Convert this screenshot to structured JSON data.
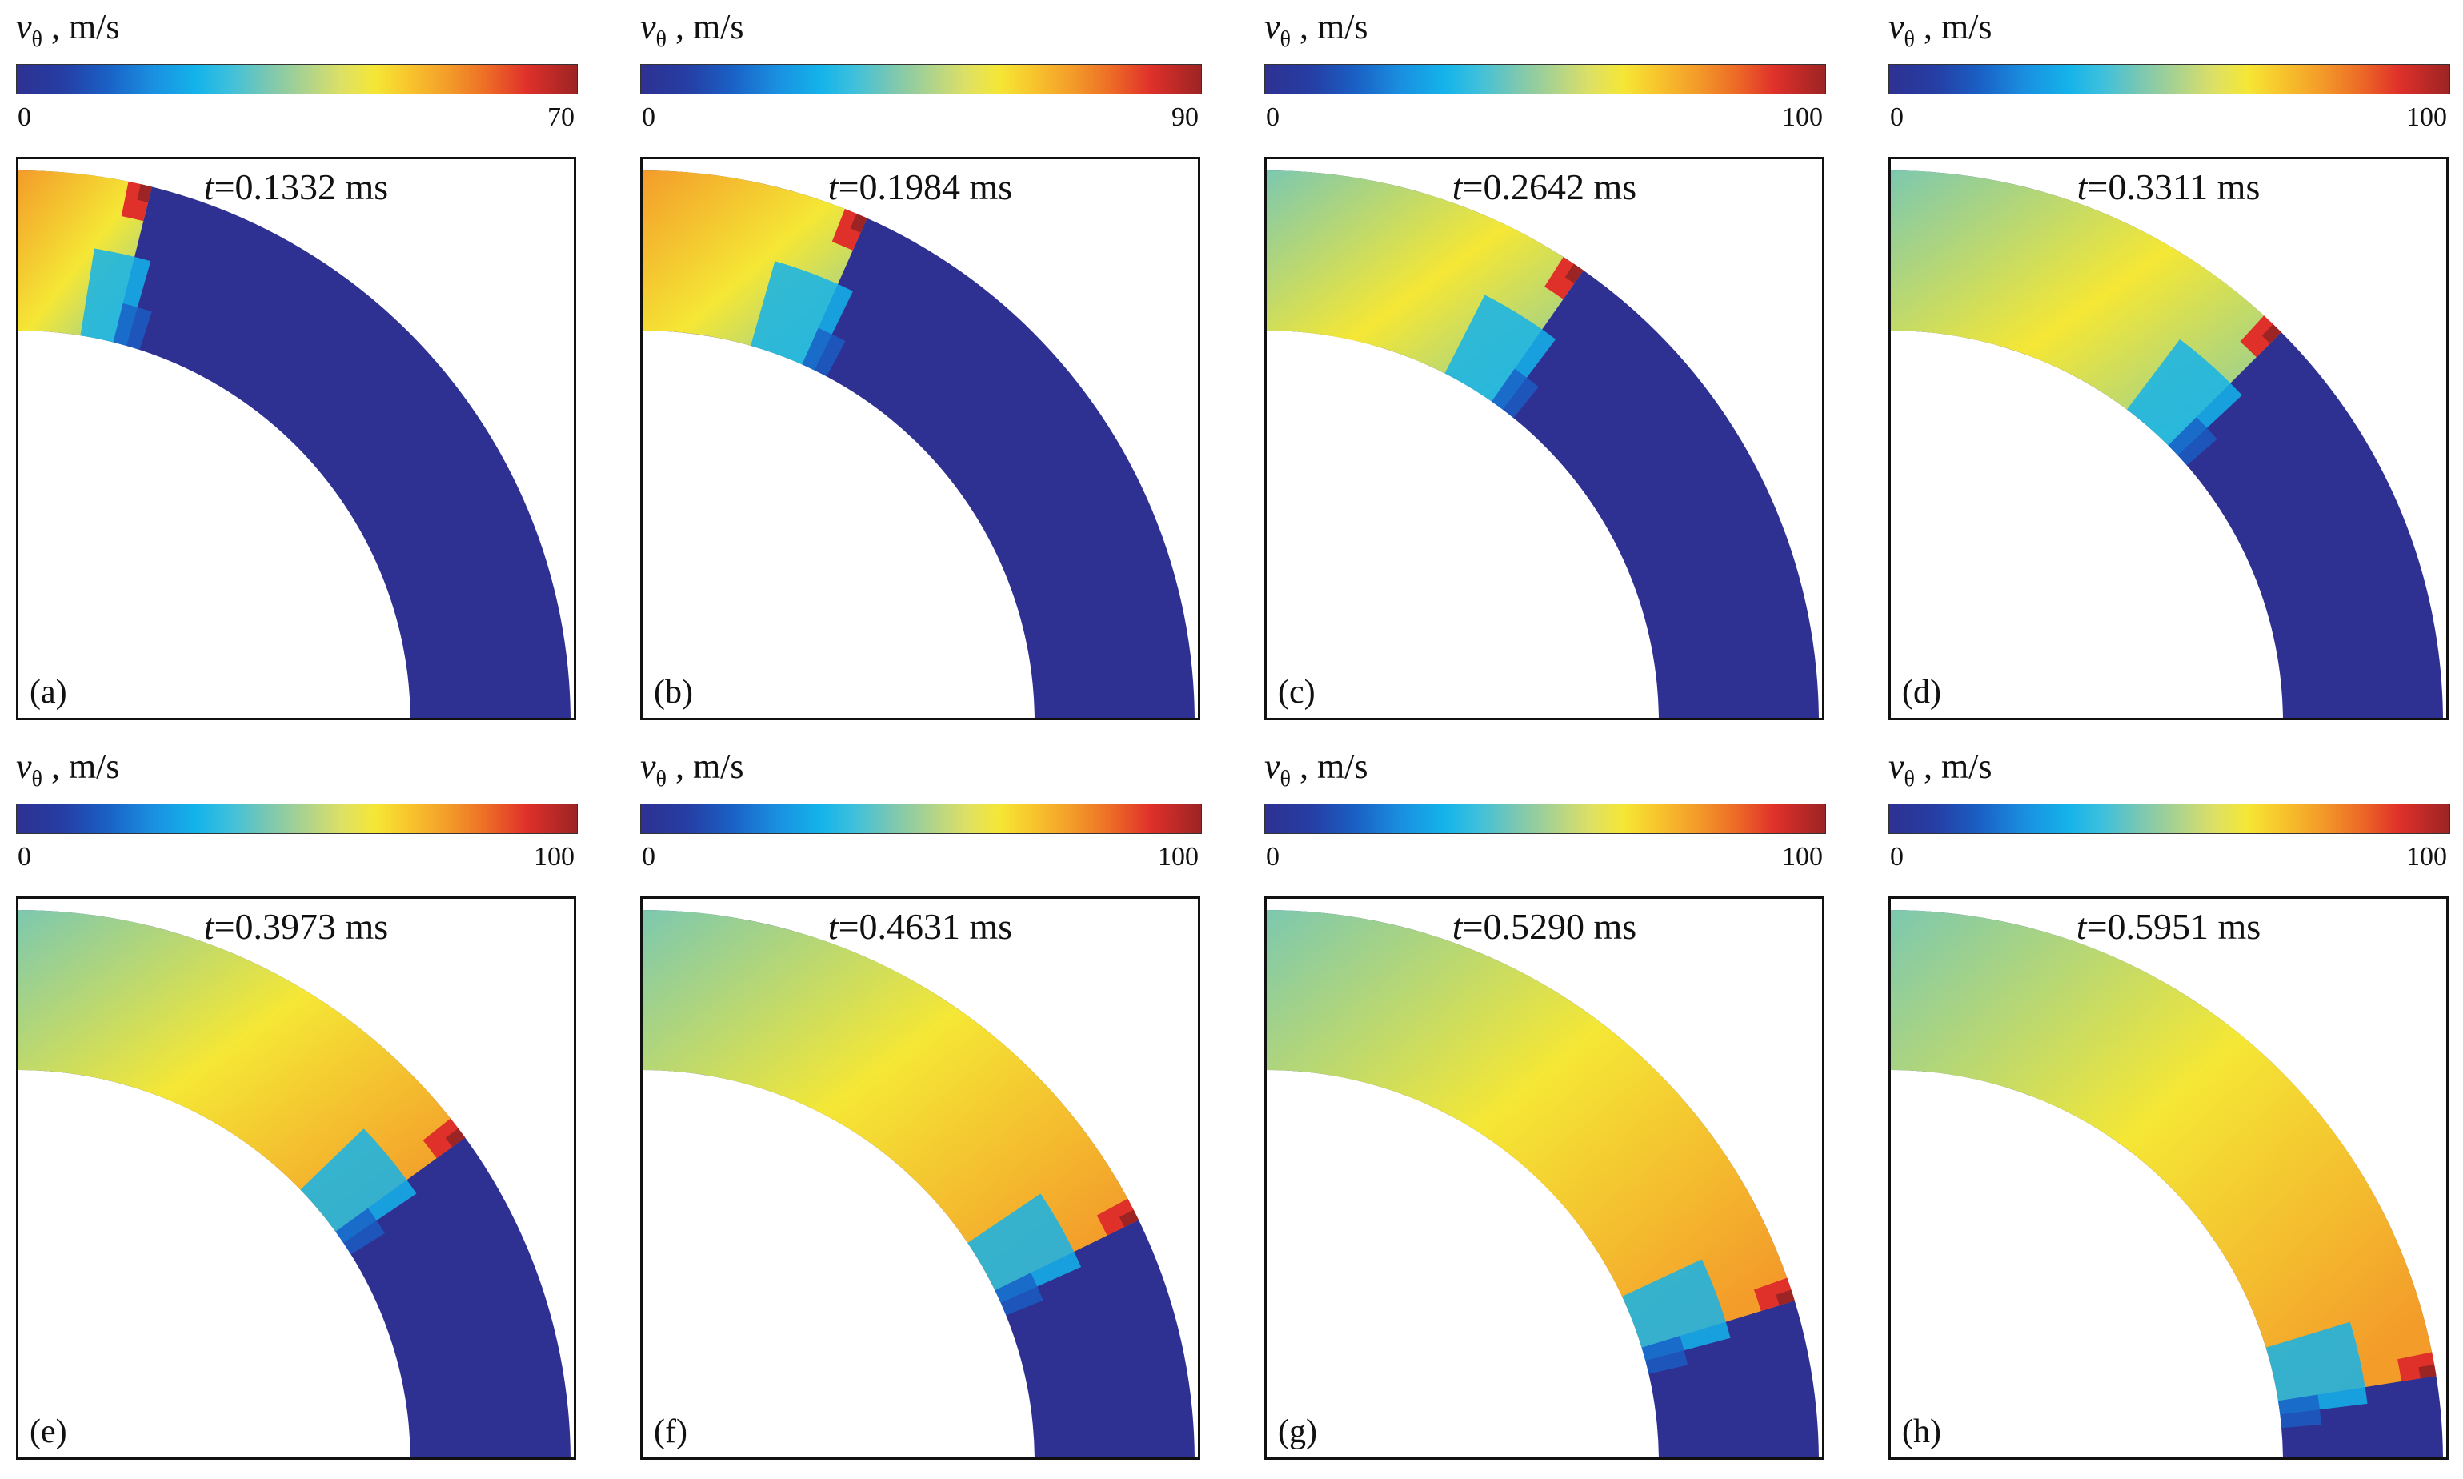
{
  "colorbar": {
    "symbol": "v",
    "subscript": "θ",
    "unit": " , m/s",
    "colors": [
      "#2e3191",
      "#1a5fc4",
      "#14b3ea",
      "#7cc8b0",
      "#f5e735",
      "#f39c2a",
      "#e0302a",
      "#9c2424"
    ]
  },
  "panels": [
    {
      "label": "(a)",
      "time_var": "t",
      "time_value": "=0.1332 ms",
      "cbar_min": "0",
      "cbar_max": "70",
      "front_deg": 14
    },
    {
      "label": "(b)",
      "time_var": "t",
      "time_value": "=0.1984 ms",
      "cbar_min": "0",
      "cbar_max": "90",
      "front_deg": 24
    },
    {
      "label": "(c)",
      "time_var": "t",
      "time_value": "=0.2642 ms",
      "cbar_min": "0",
      "cbar_max": "100",
      "front_deg": 35
    },
    {
      "label": "(d)",
      "time_var": "t",
      "time_value": "=0.3311 ms",
      "cbar_min": "0",
      "cbar_max": "100",
      "front_deg": 45
    },
    {
      "label": "(e)",
      "time_var": "t",
      "time_value": "=0.3973 ms",
      "cbar_min": "0",
      "cbar_max": "100",
      "front_deg": 54
    },
    {
      "label": "(f)",
      "time_var": "t",
      "time_value": "=0.4631 ms",
      "cbar_min": "0",
      "cbar_max": "100",
      "front_deg": 64
    },
    {
      "label": "(g)",
      "time_var": "t",
      "time_value": "=0.5290 ms",
      "cbar_min": "0",
      "cbar_max": "100",
      "front_deg": 73
    },
    {
      "label": "(h)",
      "time_var": "t",
      "time_value": "=0.5951 ms",
      "cbar_min": "0",
      "cbar_max": "100",
      "front_deg": 81
    }
  ]
}
